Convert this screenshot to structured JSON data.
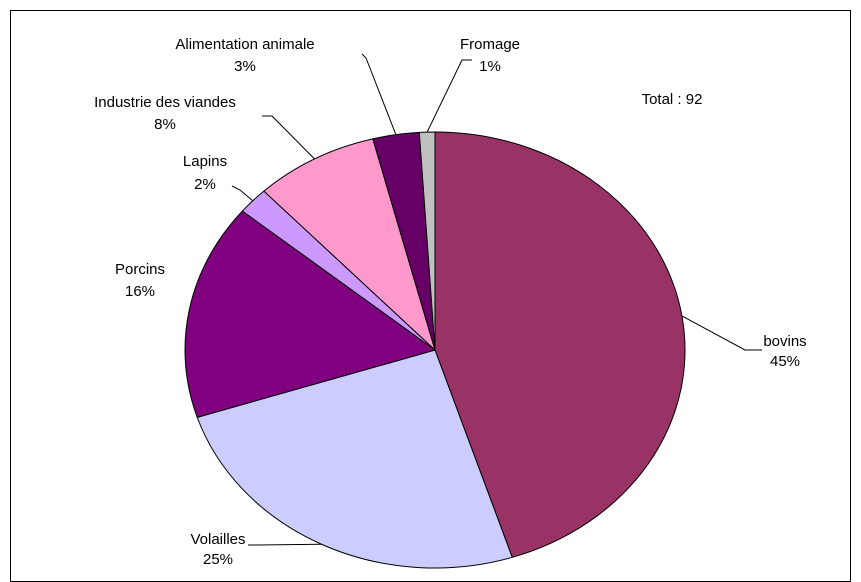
{
  "chart_data": {
    "type": "pie",
    "categories": [
      "bovins",
      "Volailles",
      "Porcins",
      "Lapins",
      "Industrie des viandes",
      "Alimentation animale",
      "Fromage"
    ],
    "values": [
      45,
      25,
      16,
      2,
      8,
      3,
      1
    ],
    "value_labels": [
      "45%",
      "25%",
      "16%",
      "2%",
      "8%",
      "3%",
      "1%"
    ],
    "colors": [
      "#993366",
      "#ccccff",
      "#800080",
      "#cc99ff",
      "#ff99cc",
      "#660066",
      "#c0c0c0"
    ],
    "annotation": "Total : 92"
  }
}
